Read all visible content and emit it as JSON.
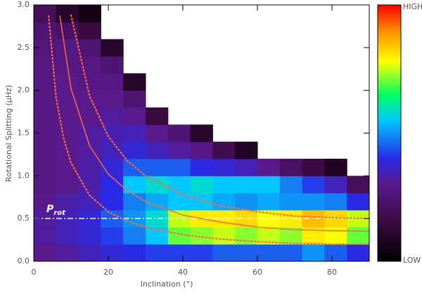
{
  "chart_data": {
    "type": "heatmap",
    "xlabel": "Inclination (°)",
    "ylabel": "Rotational Splitting (μHz)",
    "xlim": [
      0,
      90
    ],
    "ylim": [
      0,
      3
    ],
    "xticks": [
      0,
      20,
      40,
      60,
      80
    ],
    "yticks": [
      {
        "value": 0,
        "label": "0.0"
      },
      0.5,
      {
        "value": 1,
        "label": "1.0"
      },
      1.5,
      {
        "value": 2,
        "label": "2.0"
      },
      2.5,
      {
        "value": 3,
        "label": "3.0"
      }
    ],
    "colorbar_labels": {
      "high": "HIGH",
      "low": "LOW"
    },
    "zlim": [
      0,
      100
    ],
    "colorscale": [
      [
        0,
        "#000000"
      ],
      [
        15,
        "#3a0a40"
      ],
      [
        30,
        "#5a1a8c"
      ],
      [
        40,
        "#2a2ae6"
      ],
      [
        55,
        "#00c8ff"
      ],
      [
        65,
        "#00ff60"
      ],
      [
        78,
        "#ffff00"
      ],
      [
        90,
        "#ff8c00"
      ],
      [
        100,
        "#ff0000"
      ]
    ],
    "heatmap": {
      "x_edges": [
        0,
        6,
        12,
        18,
        24,
        30,
        36,
        42,
        48,
        54,
        60,
        66,
        72,
        78,
        84,
        90
      ],
      "y_edges": [
        0,
        0.2,
        0.4,
        0.6,
        0.8,
        1.0,
        1.2,
        1.4,
        1.6,
        1.8,
        2.0,
        2.2,
        2.4,
        2.6,
        2.8,
        3.0
      ],
      "z": [
        [
          30,
          32,
          35,
          38,
          40,
          42,
          42,
          42,
          45,
          45,
          45,
          45,
          50,
          45,
          40
        ],
        [
          32,
          35,
          38,
          42,
          48,
          55,
          70,
          72,
          75,
          72,
          75,
          72,
          80,
          78,
          70
        ],
        [
          32,
          35,
          38,
          45,
          50,
          58,
          75,
          80,
          80,
          82,
          78,
          80,
          85,
          82,
          75
        ],
        [
          30,
          33,
          35,
          40,
          48,
          52,
          55,
          55,
          52,
          50,
          52,
          50,
          50,
          48,
          40
        ],
        [
          28,
          30,
          33,
          40,
          55,
          58,
          55,
          58,
          55,
          55,
          55,
          48,
          42,
          35,
          20
        ],
        [
          28,
          30,
          33,
          38,
          45,
          45,
          45,
          40,
          38,
          35,
          30,
          22,
          15,
          8,
          null
        ],
        [
          28,
          30,
          32,
          35,
          38,
          35,
          32,
          28,
          18,
          8,
          null,
          null,
          null,
          null,
          null
        ],
        [
          28,
          30,
          32,
          34,
          35,
          30,
          25,
          10,
          null,
          null,
          null,
          null,
          null,
          null,
          null
        ],
        [
          28,
          30,
          30,
          32,
          30,
          15,
          null,
          null,
          null,
          null,
          null,
          null,
          null,
          null,
          null
        ],
        [
          28,
          30,
          30,
          30,
          25,
          null,
          null,
          null,
          null,
          null,
          null,
          null,
          null,
          null,
          null
        ],
        [
          28,
          30,
          28,
          28,
          10,
          null,
          null,
          null,
          null,
          null,
          null,
          null,
          null,
          null,
          null
        ],
        [
          28,
          28,
          28,
          25,
          null,
          null,
          null,
          null,
          null,
          null,
          null,
          null,
          null,
          null,
          null
        ],
        [
          26,
          28,
          25,
          10,
          null,
          null,
          null,
          null,
          null,
          null,
          null,
          null,
          null,
          null,
          null
        ],
        [
          25,
          22,
          15,
          null,
          null,
          null,
          null,
          null,
          null,
          null,
          null,
          null,
          null,
          null,
          null
        ],
        [
          20,
          10,
          5,
          null,
          null,
          null,
          null,
          null,
          null,
          null,
          null,
          null,
          null,
          null,
          null
        ]
      ]
    },
    "lines": [
      {
        "x": [
          7,
          10,
          15,
          20,
          25,
          30,
          40,
          50,
          60,
          70,
          80,
          90
        ],
        "values": [
          2.87,
          2.02,
          1.35,
          1.02,
          0.83,
          0.7,
          0.54,
          0.46,
          0.4,
          0.37,
          0.36,
          0.35
        ],
        "color": "#ff6a3c",
        "style": "solid"
      },
      {
        "x": [
          10,
          15,
          20,
          25,
          30,
          40,
          50,
          60,
          70,
          80,
          90
        ],
        "values": [
          2.88,
          1.93,
          1.46,
          1.18,
          1.0,
          0.78,
          0.65,
          0.58,
          0.53,
          0.51,
          0.5
        ],
        "color": "#ff6a3c",
        "style": "dotted"
      },
      {
        "x": [
          4,
          6,
          8,
          10,
          15,
          20,
          25,
          30,
          40,
          50,
          60,
          70,
          80,
          90
        ],
        "values": [
          2.87,
          1.91,
          1.44,
          1.15,
          0.77,
          0.58,
          0.47,
          0.4,
          0.31,
          0.26,
          0.23,
          0.21,
          0.2,
          0.2
        ],
        "color": "#ff6a3c",
        "style": "dotted"
      }
    ],
    "hline": {
      "value": 0.5,
      "color": "#ffffff",
      "style": "dashdot",
      "label": "P",
      "label_sub": "rot"
    }
  }
}
